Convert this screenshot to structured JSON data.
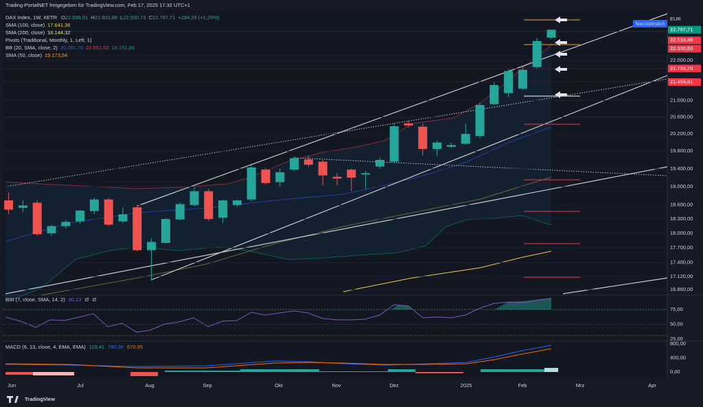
{
  "header": {
    "title": "Trading-PortalNET freigegeben für TradingView.com, Feb 17, 2025 17:32 UTC+1"
  },
  "legend": {
    "symbol": "DAX Index, 1W, XETR",
    "ohlc_labels": [
      "O",
      "H",
      "L",
      "C"
    ],
    "ohlc_values": [
      "22.589,91",
      "22.803,88",
      "22.550,73",
      "22.797,71"
    ],
    "change": "+284,29 (+1,26%)",
    "indicators": [
      {
        "name": "SMA (100, close)",
        "values": [
          "17.641,36"
        ],
        "colors": [
          "#e8d04a"
        ]
      },
      {
        "name": "SMA (200, close)",
        "values": [
          "16.144,32"
        ],
        "colors": [
          "#f5e35c"
        ]
      },
      {
        "name": "Pivots (Traditional, Monthly, 1, Left, 1)",
        "values": [],
        "colors": []
      },
      {
        "name": "BB (20, SMA, close, 2)",
        "values": [
          "20.351,70",
          "22.551,52",
          "18.151,88"
        ],
        "colors": [
          "#2962ff",
          "#f23645",
          "#089981"
        ]
      },
      {
        "name": "SMA (50, close)",
        "values": [
          "19.173,54"
        ],
        "colors": [
          "#f7a23b"
        ]
      }
    ]
  },
  "price_axis": {
    "currency": "EUR",
    "session": "Nachbörslich",
    "scale": "log",
    "ticks": [
      {
        "value": 22000,
        "label": "22.000,00"
      },
      {
        "value": 21000,
        "label": "21.000,00"
      },
      {
        "value": 20600,
        "label": "20.600,00"
      },
      {
        "value": 20200,
        "label": "20.200,00"
      },
      {
        "value": 19800,
        "label": "19.800,00"
      },
      {
        "value": 19400,
        "label": "19.400,00"
      },
      {
        "value": 19000,
        "label": "19.000,00"
      },
      {
        "value": 18600,
        "label": "18.600,00"
      },
      {
        "value": 18300,
        "label": "18.300,00"
      },
      {
        "value": 18000,
        "label": "18.000,00"
      },
      {
        "value": 17700,
        "label": "17.700,00"
      },
      {
        "value": 17400,
        "label": "17.400,00"
      },
      {
        "value": 17120,
        "label": "17.120,00"
      },
      {
        "value": 16860,
        "label": "16.860,00"
      }
    ],
    "price_labels": [
      {
        "value": 22797.71,
        "label": "22.797,71",
        "color": "#089981"
      },
      {
        "value": 22518.46,
        "label": "22.518,46",
        "color": "#f23645"
      },
      {
        "value": 22300.5,
        "label": "22.300,50",
        "color": "#f23645"
      },
      {
        "value": 21793.7,
        "label": "21.793,70",
        "color": "#f23645"
      },
      {
        "value": 21454.61,
        "label": "21.454,61",
        "color": "#f23645"
      }
    ]
  },
  "candles": {
    "up_color": "#26a69a",
    "down_color": "#ef5350",
    "open": [
      18700,
      18540,
      18650,
      18000,
      18150,
      18250,
      18470,
      18720,
      18250,
      18550,
      17650,
      17800,
      18290,
      18600,
      18900,
      18330,
      18600,
      18720,
      19380,
      19100,
      19380,
      19610,
      19560,
      19220,
      19380,
      19270,
      19450,
      19560,
      20450,
      20370,
      19850,
      19900,
      19970,
      20150,
      20910,
      21180,
      21290,
      21830,
      22589.91
    ],
    "high": [
      18870,
      18700,
      18700,
      18180,
      18280,
      18500,
      18760,
      18750,
      18550,
      18600,
      17900,
      18320,
      18660,
      18990,
      18950,
      18720,
      18720,
      19480,
      19420,
      19400,
      19680,
      19690,
      19600,
      19300,
      19400,
      19350,
      19650,
      20440,
      20520,
      20450,
      20050,
      20000,
      20450,
      20950,
      21450,
      21780,
      21830,
      22580,
      22803.88
    ],
    "low": [
      18400,
      18450,
      17950,
      17950,
      18100,
      18200,
      18400,
      18150,
      18220,
      17630,
      17040,
      17790,
      18270,
      18570,
      18260,
      18220,
      18560,
      18690,
      19050,
      19000,
      19350,
      19440,
      19030,
      19030,
      18900,
      18950,
      19400,
      19520,
      20350,
      19700,
      19700,
      19870,
      19950,
      20100,
      20890,
      21080,
      21260,
      21790,
      22550.73
    ],
    "close": [
      18500,
      18590,
      17980,
      18150,
      18240,
      18480,
      18720,
      18180,
      18400,
      17650,
      17820,
      18300,
      18620,
      18900,
      18300,
      18700,
      18700,
      19430,
      19080,
      19320,
      19640,
      19490,
      19250,
      19180,
      19200,
      19300,
      19600,
      20380,
      20400,
      19850,
      20000,
      19940,
      20200,
      20890,
      21380,
      21730,
      21760,
      22500,
      22797.71
    ]
  },
  "time_axis": [
    "Jun",
    "Jul",
    "Aug",
    "Sep",
    "Okt",
    "Nov",
    "Dez",
    "2025",
    "Feb",
    "Mrz",
    "Apr"
  ],
  "rsi": {
    "title": "RSI (7, close, SMA, 14, 2)",
    "values": [
      "90,13",
      "Ø",
      "Ø"
    ],
    "ticks": [
      {
        "value": 75,
        "label": "75,00"
      },
      {
        "value": 50,
        "label": "50,00"
      },
      {
        "value": 25,
        "label": "25,00"
      }
    ]
  },
  "macd": {
    "title": "MACD (6, 13, close, 4, EMA, EMA)",
    "values": [
      "119,41",
      "790,36",
      "670,95"
    ],
    "colors": [
      "#26a69a",
      "#2962ff",
      "#ff6d00"
    ],
    "ticks": [
      {
        "value": 800,
        "label": "800,00"
      },
      {
        "value": 400,
        "label": "400,00"
      },
      {
        "value": 0,
        "label": "0,00"
      }
    ]
  },
  "footer": {
    "brand": "TradingView"
  }
}
